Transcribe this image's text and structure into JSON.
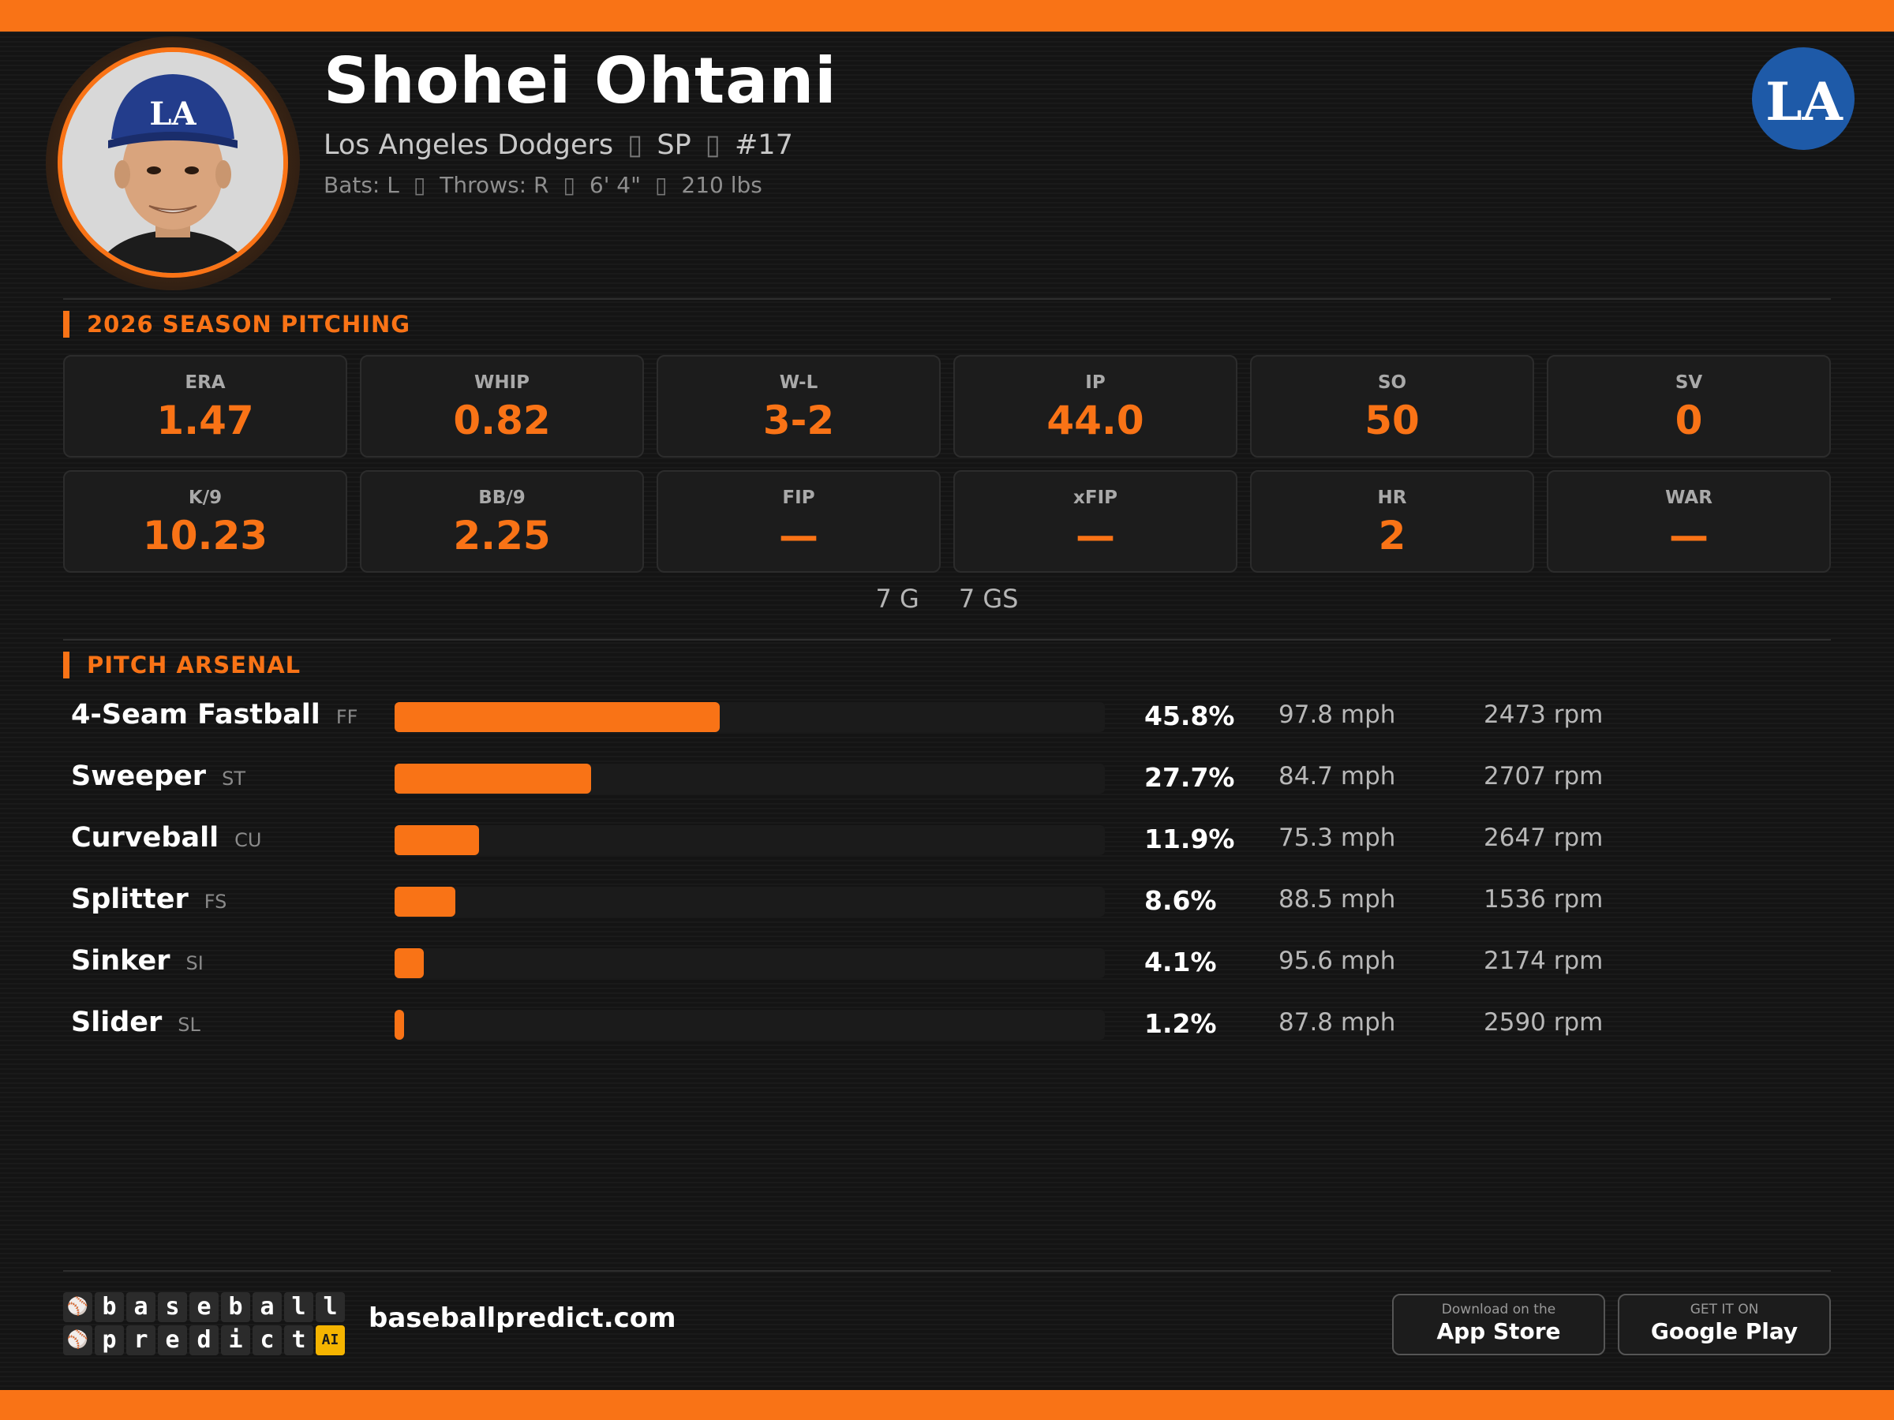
{
  "player": {
    "name": "Shohei Ohtani",
    "team": "Los Angeles Dodgers",
    "position": "SP",
    "number": "#17",
    "separator": "▯",
    "bats": "Bats: L",
    "throws": "Throws: R",
    "height": "6' 4\"",
    "weight": "210 lbs"
  },
  "team_logo_text": "LA",
  "season": {
    "title": "2026 SEASON PITCHING",
    "stats": [
      {
        "label": "ERA",
        "value": "1.47"
      },
      {
        "label": "WHIP",
        "value": "0.82"
      },
      {
        "label": "W-L",
        "value": "3-2"
      },
      {
        "label": "IP",
        "value": "44.0"
      },
      {
        "label": "SO",
        "value": "50"
      },
      {
        "label": "SV",
        "value": "0"
      },
      {
        "label": "K/9",
        "value": "10.23"
      },
      {
        "label": "BB/9",
        "value": "2.25"
      },
      {
        "label": "FIP",
        "value": "—"
      },
      {
        "label": "xFIP",
        "value": "—"
      },
      {
        "label": "HR",
        "value": "2"
      },
      {
        "label": "WAR",
        "value": "—"
      }
    ],
    "games": "7 G",
    "games_started": "7 GS"
  },
  "arsenal": {
    "title": "PITCH ARSENAL",
    "pitches": [
      {
        "name": "4-Seam Fastball",
        "code": "FF",
        "pct": "45.8%",
        "usage": 45.8,
        "velo": "97.8 mph",
        "spin": "2473 rpm"
      },
      {
        "name": "Sweeper",
        "code": "ST",
        "pct": "27.7%",
        "usage": 27.7,
        "velo": "84.7 mph",
        "spin": "2707 rpm"
      },
      {
        "name": "Curveball",
        "code": "CU",
        "pct": "11.9%",
        "usage": 11.9,
        "velo": "75.3 mph",
        "spin": "2647 rpm"
      },
      {
        "name": "Splitter",
        "code": "FS",
        "pct": "8.6%",
        "usage": 8.6,
        "velo": "88.5 mph",
        "spin": "1536 rpm"
      },
      {
        "name": "Sinker",
        "code": "SI",
        "pct": "4.1%",
        "usage": 4.1,
        "velo": "95.6 mph",
        "spin": "2174 rpm"
      },
      {
        "name": "Slider",
        "code": "SL",
        "pct": "1.2%",
        "usage": 1.2,
        "velo": "87.8 mph",
        "spin": "2590 rpm"
      }
    ]
  },
  "footer": {
    "brand_line1": "baseball",
    "brand_line2": "predict",
    "brand_ai": "AI",
    "site": "baseballpredict.com",
    "app_store_small": "Download on the",
    "app_store_big": "App Store",
    "google_small": "GET IT ON",
    "google_big": "Google Play"
  },
  "colors": {
    "accent": "#f97316",
    "background": "#141414",
    "card": "#1c1c1c",
    "team": "#1e5aa8"
  }
}
